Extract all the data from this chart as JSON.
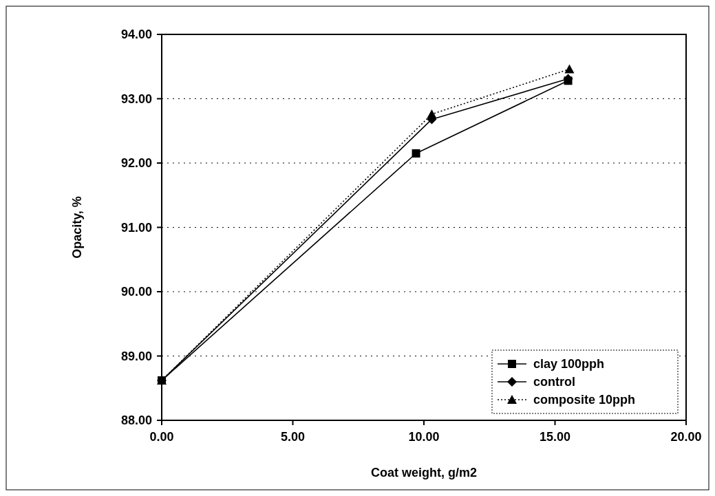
{
  "chart_data": {
    "type": "line",
    "xlabel": "Coat weight, g/m2",
    "ylabel": "Opacity, %",
    "xlim": [
      0,
      20
    ],
    "xticks": [
      {
        "value": 0,
        "label": "0.00"
      },
      {
        "value": 5,
        "label": "5.00"
      },
      {
        "value": 10,
        "label": "10.00"
      },
      {
        "value": 15,
        "label": "15.00"
      },
      {
        "value": 20,
        "label": "20.00"
      }
    ],
    "ylim": [
      88,
      94
    ],
    "yticks": [
      {
        "value": 88,
        "label": "88.00"
      },
      {
        "value": 89,
        "label": "89.00"
      },
      {
        "value": 90,
        "label": "90.00"
      },
      {
        "value": 91,
        "label": "91.00"
      },
      {
        "value": 92,
        "label": "92.00"
      },
      {
        "value": 93,
        "label": "93.00"
      },
      {
        "value": 94,
        "label": "94.00"
      }
    ],
    "grid": "y",
    "legend": "bottom right",
    "series": [
      {
        "name": "clay 100pph",
        "color": "#000000",
        "marker": "square",
        "line_style": "solid",
        "x": [
          0,
          9.7,
          15.5
        ],
        "values": [
          88.62,
          92.15,
          93.28
        ]
      },
      {
        "name": "control",
        "color": "#000000",
        "marker": "diamond",
        "line_style": "solid",
        "x": [
          0,
          10.3,
          15.5
        ],
        "values": [
          88.62,
          92.68,
          93.31
        ]
      },
      {
        "name": "composite 10pph",
        "color": "#000000",
        "marker": "triangle",
        "line_style": "dotted",
        "x": [
          0,
          10.3,
          15.55
        ],
        "values": [
          88.62,
          92.76,
          93.46
        ]
      }
    ]
  }
}
